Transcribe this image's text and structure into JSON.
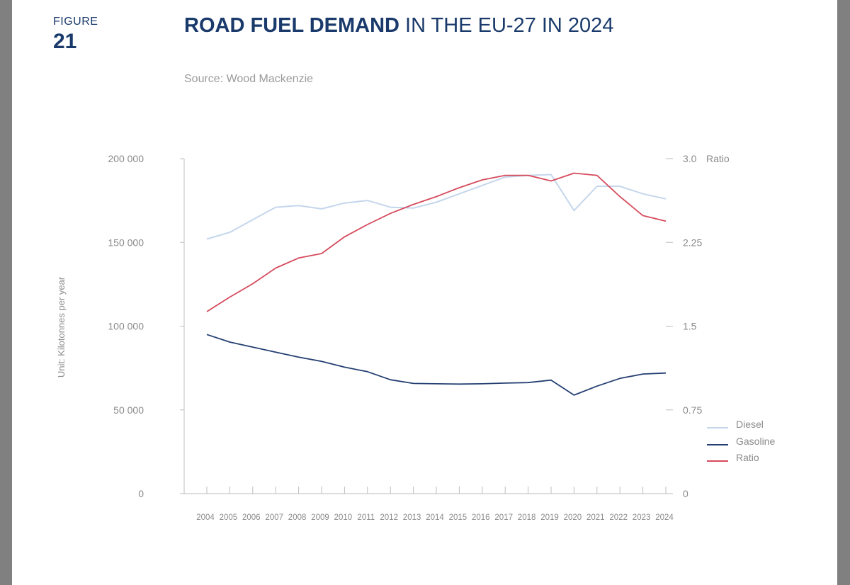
{
  "figure": {
    "label": "FIGURE",
    "number": "21"
  },
  "title": {
    "bold": "ROAD FUEL DEMAND",
    "regular": " IN THE EU-27 IN 2024"
  },
  "source": "Source: Wood Mackenzie",
  "colors": {
    "diesel": "#c5d6ec",
    "gasoline": "#243f72",
    "ratio": "#d64a5c",
    "axis": "#bdbdbd",
    "text": "#8a8a8a",
    "title": "#1a3a6b"
  },
  "chart_data": {
    "type": "line",
    "title": "ROAD FUEL DEMAND IN THE EU-27 IN 2024",
    "ylabel": "Unit: Kilotonnes per year",
    "y2label": "Ratio",
    "ylim": [
      0,
      200000
    ],
    "y2lim": [
      0,
      3.0
    ],
    "yticks": [
      "0",
      "50 000",
      "100 000",
      "150 000",
      "200 000"
    ],
    "y2ticks": [
      "0",
      "0.75",
      "1.5",
      "2.25",
      "3.0"
    ],
    "x": [
      "2004",
      "2005",
      "2006",
      "2007",
      "2008",
      "2009",
      "2010",
      "2011",
      "2012",
      "2013",
      "2014",
      "2015",
      "2016",
      "2017",
      "2018",
      "2019",
      "2020",
      "2021",
      "2022",
      "2023",
      "2024"
    ],
    "series": [
      {
        "name": "Diesel",
        "axis": "left",
        "values": [
          152000,
          156000,
          163500,
          171000,
          172000,
          170000,
          173500,
          175000,
          171000,
          170500,
          174000,
          179000,
          184000,
          189000,
          190000,
          190500,
          169000,
          183500,
          183500,
          179000,
          176000
        ]
      },
      {
        "name": "Gasoline",
        "axis": "left",
        "values": [
          95000,
          90500,
          87500,
          84500,
          81500,
          79000,
          75500,
          72800,
          68000,
          65800,
          65600,
          65400,
          65600,
          66000,
          66300,
          67800,
          58800,
          64200,
          68800,
          71400,
          72000
        ]
      },
      {
        "name": "Ratio",
        "axis": "right",
        "values": [
          1.63,
          1.76,
          1.88,
          2.02,
          2.11,
          2.15,
          2.3,
          2.41,
          2.51,
          2.59,
          2.66,
          2.74,
          2.81,
          2.85,
          2.85,
          2.8,
          2.87,
          2.85,
          2.66,
          2.49,
          2.44
        ]
      }
    ],
    "legend": [
      "Diesel",
      "Gasoline",
      "Ratio"
    ],
    "legend_position": "right"
  }
}
